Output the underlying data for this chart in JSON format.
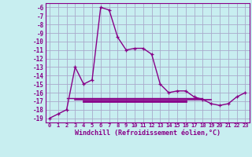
{
  "xlabel": "Windchill (Refroidissement éolien,°C)",
  "bg_color": "#c8eef0",
  "line_color": "#880088",
  "grid_color": "#aaaacc",
  "hours": [
    0,
    1,
    2,
    3,
    4,
    5,
    6,
    7,
    8,
    9,
    10,
    11,
    12,
    13,
    14,
    15,
    16,
    17,
    18,
    19,
    20,
    21,
    22,
    23
  ],
  "windchill": [
    -19,
    -18.5,
    -18,
    -13,
    -15,
    -14.5,
    -6,
    -6.3,
    -9.5,
    -11,
    -10.8,
    -10.8,
    -11.5,
    -15,
    -16,
    -15.8,
    -15.8,
    -16.5,
    -16.8,
    -17.3,
    -17.5,
    -17.3,
    -16.5,
    -16
  ],
  "flat_line1_x": [
    2,
    18
  ],
  "flat_line1_y": [
    -16.6,
    -16.6
  ],
  "flat_line2_x": [
    4,
    16
  ],
  "flat_line2_y": [
    -17.0,
    -17.0
  ],
  "flat_line3_x": [
    3,
    19
  ],
  "flat_line3_y": [
    -16.9,
    -16.9
  ],
  "ylim": [
    -19.5,
    -5.5
  ],
  "yticks": [
    -6,
    -7,
    -8,
    -9,
    -10,
    -11,
    -12,
    -13,
    -14,
    -15,
    -16,
    -17,
    -18,
    -19
  ],
  "xlim": [
    -0.5,
    23.5
  ]
}
